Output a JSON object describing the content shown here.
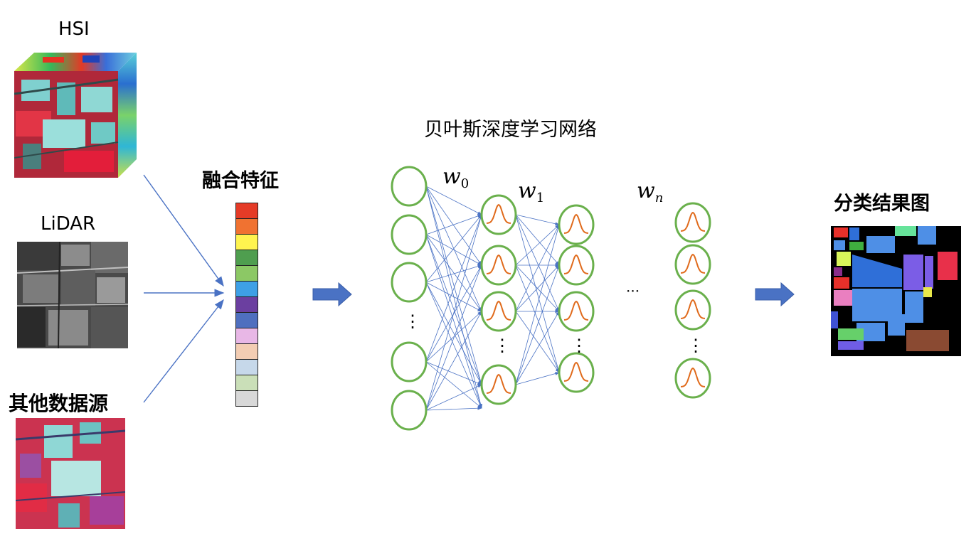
{
  "inputs": {
    "hsi_label": "HSI",
    "lidar_label": "LiDAR",
    "other_label": "其他数据源"
  },
  "fused": {
    "title": "融合特征",
    "cell_colors": [
      "#e53b27",
      "#f07231",
      "#fff44f",
      "#4f9e4f",
      "#8cc865",
      "#3ea0e6",
      "#6b3fa0",
      "#4f6fbf",
      "#e8b7e6",
      "#f3cdb3",
      "#c6d8ea",
      "#cadfb8",
      "#d8d8d8"
    ]
  },
  "network": {
    "title": "贝叶斯深度学习网络",
    "weights": [
      "w",
      "w",
      "w"
    ],
    "weight_subs": [
      "0",
      "1",
      "n"
    ],
    "ellipsis_h": "···",
    "ellipsis_v": "⋮"
  },
  "output": {
    "title": "分类结果图"
  },
  "colors": {
    "arrow_blue": "#4a72c4",
    "node_green": "#6ab04c",
    "curve_orange": "#e06a1b"
  }
}
